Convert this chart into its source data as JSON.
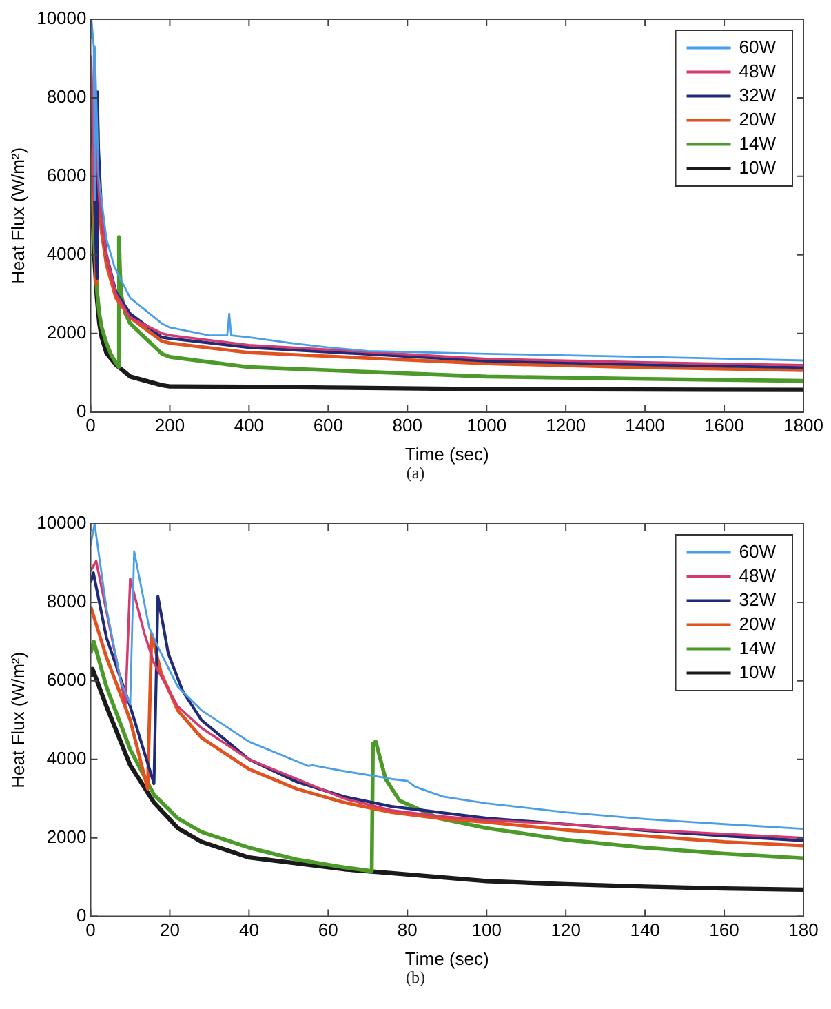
{
  "chart_data": [
    {
      "type": "line",
      "xlabel": "Time (sec)",
      "ylabel": "Heat Flux (W/m²)",
      "annotations": [
        "(a)"
      ],
      "xlim": [
        0,
        1800
      ],
      "xticks": [
        0,
        200,
        400,
        600,
        800,
        1000,
        1200,
        1400,
        1600,
        1800
      ],
      "ylim": [
        0,
        10000
      ],
      "yticks": [
        0,
        2000,
        4000,
        6000,
        8000,
        10000
      ],
      "grid": false,
      "legend": "top right",
      "marker": "none",
      "line_style": "solid",
      "series": [
        {
          "name": "60W",
          "color": "#4a9ee8",
          "x": [
            0,
            2,
            8,
            10,
            11,
            20,
            40,
            60,
            100,
            180,
            200,
            300,
            345,
            350,
            355,
            400,
            500,
            600,
            700,
            1000,
            1400,
            1800
          ],
          "values": [
            9500,
            10000,
            9300,
            5400,
            9300,
            6000,
            4400,
            3700,
            2900,
            2250,
            2150,
            1950,
            1950,
            2500,
            1950,
            1900,
            1760,
            1640,
            1550,
            1480,
            1400,
            1310
          ]
        },
        {
          "name": "48W",
          "color": "#d43a6e",
          "x": [
            0,
            1.4,
            8.8,
            10,
            16,
            22,
            40,
            64,
            100,
            180,
            200,
            400,
            1000,
            1400,
            1800
          ],
          "values": [
            8800,
            9050,
            5400,
            8600,
            6500,
            5400,
            4000,
            3000,
            2400,
            2000,
            1950,
            1700,
            1350,
            1260,
            1190
          ]
        },
        {
          "name": "32W",
          "color": "#1f2a78",
          "x": [
            0,
            0.7,
            4,
            10,
            16,
            17,
            20,
            28,
            40,
            64,
            100,
            180,
            200,
            400,
            1000,
            1400,
            1800
          ],
          "values": [
            8500,
            8800,
            7100,
            5400,
            3400,
            8150,
            6700,
            5000,
            4000,
            3050,
            2500,
            1900,
            1870,
            1640,
            1300,
            1200,
            1130
          ]
        },
        {
          "name": "20W",
          "color": "#e0531f",
          "x": [
            0,
            4,
            10,
            14.4,
            15.4,
            18,
            22,
            28,
            40,
            64,
            100,
            180,
            200,
            400,
            1000,
            1400,
            1800
          ],
          "values": [
            7900,
            6600,
            5000,
            3250,
            7200,
            6200,
            5200,
            4550,
            3750,
            2900,
            2400,
            1800,
            1750,
            1510,
            1230,
            1130,
            1060
          ]
        },
        {
          "name": "14W",
          "color": "#4c9a2a",
          "x": [
            0,
            0.8,
            4,
            10,
            16,
            22,
            28,
            40,
            52,
            64,
            71,
            71.3,
            72,
            74.5,
            78,
            88,
            100,
            180,
            200,
            400,
            1000,
            1400,
            1800
          ],
          "values": [
            6700,
            7000,
            5850,
            4250,
            3100,
            2500,
            2150,
            1750,
            1450,
            1250,
            1150,
            4400,
            4450,
            3500,
            2950,
            2500,
            2250,
            1480,
            1400,
            1140,
            900,
            840,
            790
          ]
        },
        {
          "name": "10W",
          "color": "#1a1a1a",
          "x": [
            0,
            0.5,
            4,
            10,
            16,
            22,
            28,
            40,
            52,
            64,
            76,
            100,
            180,
            200,
            400,
            600,
            1000,
            1400,
            1800
          ],
          "values": [
            6100,
            6300,
            5350,
            3850,
            2900,
            2250,
            1900,
            1500,
            1350,
            1200,
            1100,
            900,
            680,
            650,
            640,
            620,
            580,
            570,
            560
          ]
        }
      ]
    },
    {
      "type": "line",
      "xlabel": "Time (sec)",
      "ylabel": "Heat Flux (W/m²)",
      "annotations": [
        "(b)"
      ],
      "xlim": [
        0,
        180
      ],
      "xticks": [
        0,
        20,
        40,
        60,
        80,
        100,
        120,
        140,
        160,
        180
      ],
      "ylim": [
        0,
        10000
      ],
      "yticks": [
        0,
        2000,
        4000,
        6000,
        8000,
        10000
      ],
      "grid": false,
      "legend": "top right",
      "marker": "none",
      "line_style": "solid",
      "series": [
        {
          "name": "60W",
          "color": "#4a9ee8",
          "x": [
            0,
            1,
            4,
            7.6,
            10,
            11,
            14.8,
            17.8,
            22,
            28,
            40,
            55,
            56,
            64,
            76,
            80,
            82,
            89,
            100,
            120,
            140,
            160,
            180
          ],
          "values": [
            9450,
            10000,
            7850,
            6000,
            5400,
            9300,
            7350,
            6700,
            5850,
            5250,
            4450,
            3830,
            3850,
            3700,
            3500,
            3450,
            3300,
            3050,
            2880,
            2650,
            2480,
            2350,
            2230
          ]
        },
        {
          "name": "48W",
          "color": "#d43a6e",
          "x": [
            0,
            1.4,
            8.8,
            10,
            13.6,
            16,
            22,
            28,
            40,
            52,
            64,
            76,
            88,
            100,
            120,
            140,
            160,
            180
          ],
          "values": [
            8800,
            9050,
            5400,
            8600,
            7200,
            6450,
            5350,
            4800,
            4000,
            3500,
            3000,
            2700,
            2550,
            2450,
            2350,
            2200,
            2100,
            2000
          ]
        },
        {
          "name": "32W",
          "color": "#1f2a78",
          "x": [
            0,
            0.7,
            4,
            10,
            16,
            17,
            19.6,
            23.2,
            28,
            40,
            52,
            64,
            76,
            88,
            100,
            120,
            140,
            160,
            180
          ],
          "values": [
            8500,
            8750,
            7100,
            5350,
            3380,
            8150,
            6700,
            5750,
            5000,
            4000,
            3430,
            3050,
            2800,
            2650,
            2500,
            2350,
            2190,
            2050,
            1930
          ]
        },
        {
          "name": "20W",
          "color": "#e0531f",
          "x": [
            0,
            4,
            10,
            14.4,
            15.4,
            17.8,
            22,
            28,
            40,
            52,
            64,
            76,
            88,
            100,
            120,
            140,
            160,
            180
          ],
          "values": [
            7900,
            6600,
            5000,
            3250,
            7200,
            6200,
            5250,
            4550,
            3750,
            3250,
            2900,
            2650,
            2500,
            2400,
            2200,
            2050,
            1900,
            1800
          ]
        },
        {
          "name": "14W",
          "color": "#4c9a2a",
          "x": [
            0,
            0.8,
            4,
            10,
            16,
            22,
            28,
            40,
            52,
            64,
            71,
            71.3,
            72,
            74.5,
            78,
            88,
            100,
            120,
            140,
            160,
            180
          ],
          "values": [
            6700,
            7000,
            5850,
            4250,
            3100,
            2500,
            2150,
            1750,
            1450,
            1250,
            1150,
            4400,
            4450,
            3500,
            2950,
            2500,
            2250,
            1950,
            1750,
            1600,
            1480
          ]
        },
        {
          "name": "10W",
          "color": "#1a1a1a",
          "x": [
            0,
            0.5,
            4,
            10,
            16,
            22,
            28,
            40,
            52,
            64,
            76,
            100,
            120,
            140,
            160,
            180
          ],
          "values": [
            6100,
            6300,
            5350,
            3850,
            2900,
            2250,
            1900,
            1500,
            1350,
            1200,
            1100,
            900,
            820,
            760,
            710,
            680
          ]
        }
      ]
    }
  ]
}
